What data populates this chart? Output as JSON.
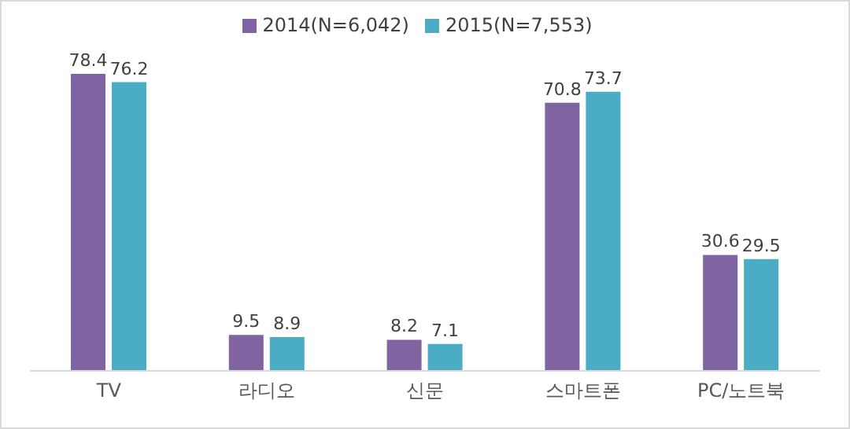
{
  "chart_data": {
    "type": "bar",
    "categories": [
      "TV",
      "라디오",
      "신문",
      "스마트폰",
      "PC/노트북"
    ],
    "series": [
      {
        "name": "2014(N=6,042)",
        "color": "#8064a2",
        "values": [
          78.4,
          9.5,
          8.2,
          70.8,
          30.6
        ]
      },
      {
        "name": "2015(N=7,553)",
        "color": "#4bacc6",
        "values": [
          76.2,
          8.9,
          7.1,
          73.7,
          29.5
        ]
      }
    ],
    "data_labels": true,
    "legend": "top",
    "grid": false
  }
}
